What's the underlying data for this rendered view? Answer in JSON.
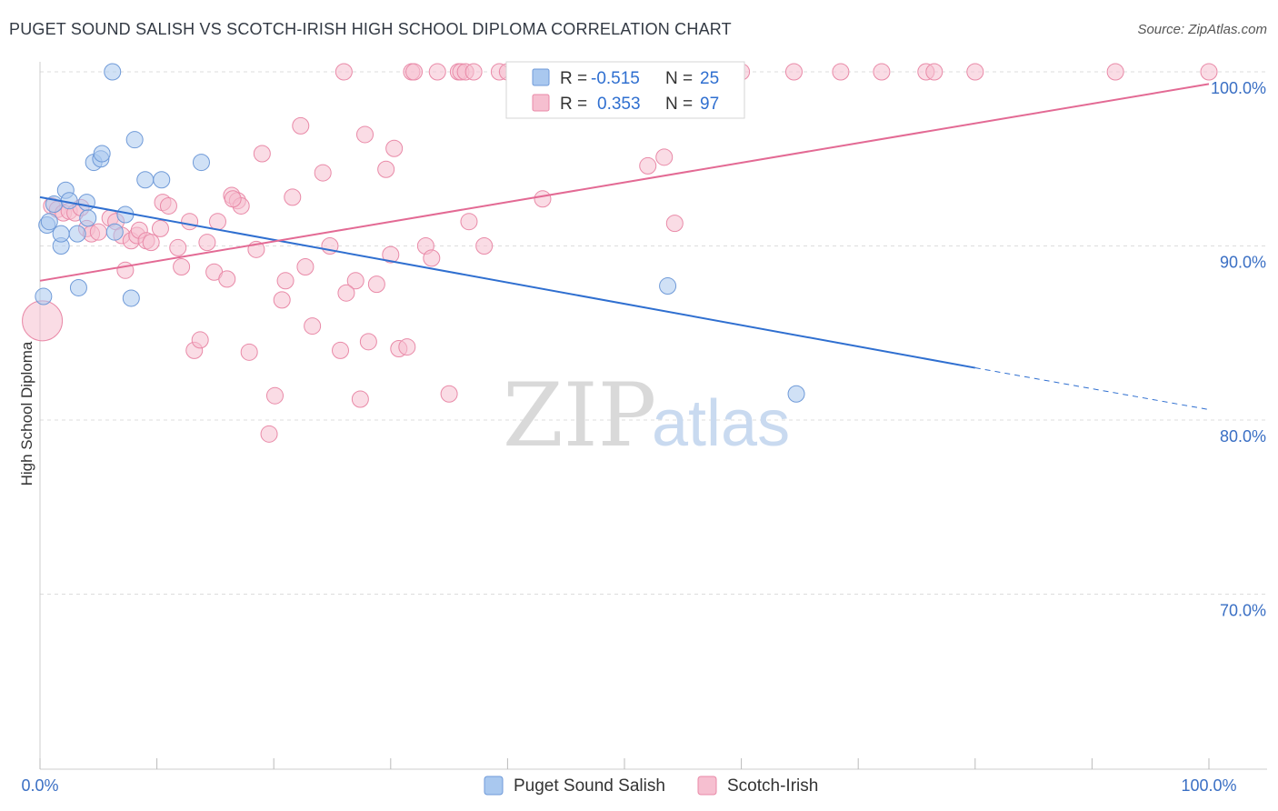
{
  "title": "PUGET SOUND SALISH VS SCOTCH-IRISH HIGH SCHOOL DIPLOMA CORRELATION CHART",
  "source": "Source: ZipAtlas.com",
  "watermark": {
    "zip": "ZIP",
    "atlas": "atlas"
  },
  "colors": {
    "blue_fill": "#a9c8ef",
    "blue_stroke": "#6f9ad8",
    "blue_line": "#2f6fd0",
    "pink_fill": "#f6bfd0",
    "pink_stroke": "#e98aa8",
    "pink_line": "#e36a94",
    "grid": "#dddddd",
    "tick_label": "#3a6fc4"
  },
  "legend": {
    "rows": [
      {
        "r_label": "R =",
        "r_value": "-0.515",
        "n_label": "N =",
        "n_value": "25"
      },
      {
        "r_label": "R =",
        "r_value": "0.353",
        "n_label": "N =",
        "n_value": "97"
      }
    ]
  },
  "chart_data": {
    "type": "scatter",
    "title": "PUGET SOUND SALISH VS SCOTCH-IRISH HIGH SCHOOL DIPLOMA CORRELATION CHART",
    "xlabel": "",
    "ylabel": "High School Diploma",
    "xlim": [
      0,
      100
    ],
    "ylim": [
      60.5,
      100.9
    ],
    "x_tick_labels": [
      "0.0%",
      "100.0%"
    ],
    "y_ticks": [
      70,
      80,
      90,
      100
    ],
    "y_tick_labels": [
      "70.0%",
      "80.0%",
      "90.0%",
      "100.0%"
    ],
    "grid": true,
    "legend_position": "top-center",
    "series": [
      {
        "name": "Puget Sound Salish",
        "R": -0.515,
        "N": 25,
        "trend": {
          "x0": 0,
          "y0": 92.8,
          "x1": 80,
          "y1": 83.0,
          "dash_to_x": 100,
          "dash_to_y": 80.6
        },
        "points": [
          [
            0.3,
            87.1
          ],
          [
            0.6,
            91.2
          ],
          [
            0.8,
            91.4
          ],
          [
            1.2,
            92.4
          ],
          [
            1.8,
            90.0
          ],
          [
            1.8,
            90.7
          ],
          [
            2.2,
            93.2
          ],
          [
            2.5,
            92.6
          ],
          [
            3.2,
            90.7
          ],
          [
            3.3,
            87.6
          ],
          [
            4.0,
            92.5
          ],
          [
            4.1,
            91.6
          ],
          [
            4.6,
            94.8
          ],
          [
            5.2,
            95.0
          ],
          [
            5.3,
            95.3
          ],
          [
            6.2,
            100.0
          ],
          [
            6.4,
            90.8
          ],
          [
            7.3,
            91.8
          ],
          [
            7.8,
            87.0
          ],
          [
            8.1,
            96.1
          ],
          [
            9.0,
            93.8
          ],
          [
            10.4,
            93.8
          ],
          [
            13.8,
            94.8
          ],
          [
            53.7,
            87.7
          ],
          [
            64.7,
            81.5
          ]
        ]
      },
      {
        "name": "Scotch-Irish",
        "R": 0.353,
        "N": 97,
        "trend": {
          "x0": 0,
          "y0": 88.0,
          "x1": 100,
          "y1": 99.3
        },
        "points": [
          [
            0.2,
            85.7
          ],
          [
            1.0,
            92.3
          ],
          [
            1.5,
            92.1
          ],
          [
            2.0,
            91.9
          ],
          [
            2.5,
            92.0
          ],
          [
            3.0,
            91.9
          ],
          [
            3.5,
            92.2
          ],
          [
            4.0,
            91.0
          ],
          [
            4.4,
            90.7
          ],
          [
            5.0,
            90.8
          ],
          [
            6.0,
            91.6
          ],
          [
            6.5,
            91.4
          ],
          [
            7.0,
            90.6
          ],
          [
            7.3,
            88.6
          ],
          [
            7.8,
            90.3
          ],
          [
            8.3,
            90.6
          ],
          [
            8.5,
            90.9
          ],
          [
            9.1,
            90.3
          ],
          [
            9.5,
            90.2
          ],
          [
            10.3,
            91.0
          ],
          [
            10.5,
            92.5
          ],
          [
            11.0,
            92.3
          ],
          [
            11.8,
            89.9
          ],
          [
            12.1,
            88.8
          ],
          [
            12.8,
            91.4
          ],
          [
            13.2,
            84.0
          ],
          [
            13.7,
            84.6
          ],
          [
            14.3,
            90.2
          ],
          [
            14.9,
            88.5
          ],
          [
            15.2,
            91.4
          ],
          [
            16.0,
            88.1
          ],
          [
            16.4,
            92.9
          ],
          [
            16.9,
            92.6
          ],
          [
            17.2,
            92.3
          ],
          [
            17.9,
            83.9
          ],
          [
            18.5,
            89.8
          ],
          [
            19.0,
            95.3
          ],
          [
            19.6,
            79.2
          ],
          [
            20.1,
            81.4
          ],
          [
            20.7,
            86.9
          ],
          [
            21.0,
            88.0
          ],
          [
            21.6,
            92.8
          ],
          [
            22.3,
            96.9
          ],
          [
            22.7,
            88.8
          ],
          [
            23.3,
            85.4
          ],
          [
            24.2,
            94.2
          ],
          [
            24.8,
            90.0
          ],
          [
            25.7,
            84.0
          ],
          [
            26.0,
            100.0
          ],
          [
            27.0,
            88.0
          ],
          [
            27.4,
            81.2
          ],
          [
            27.8,
            96.4
          ],
          [
            28.1,
            84.5
          ],
          [
            28.8,
            87.8
          ],
          [
            29.6,
            94.4
          ],
          [
            30.0,
            89.5
          ],
          [
            30.3,
            95.6
          ],
          [
            30.7,
            84.1
          ],
          [
            31.4,
            84.2
          ],
          [
            31.8,
            100.0
          ],
          [
            32.0,
            100.0
          ],
          [
            33.0,
            90.0
          ],
          [
            33.5,
            89.3
          ],
          [
            34.0,
            100.0
          ],
          [
            35.0,
            81.5
          ],
          [
            35.8,
            100.0
          ],
          [
            36.0,
            100.0
          ],
          [
            36.4,
            100.0
          ],
          [
            37.1,
            100.0
          ],
          [
            38.0,
            90.0
          ],
          [
            39.3,
            100.0
          ],
          [
            40.0,
            100.0
          ],
          [
            41.0,
            100.0
          ],
          [
            43.0,
            92.7
          ],
          [
            44.0,
            100.0
          ],
          [
            45.0,
            100.0
          ],
          [
            46.0,
            100.0
          ],
          [
            48.0,
            100.0
          ],
          [
            50.0,
            100.0
          ],
          [
            52.5,
            100.0
          ],
          [
            53.4,
            95.1
          ],
          [
            56.0,
            100.0
          ],
          [
            58.0,
            100.0
          ],
          [
            60.0,
            100.0
          ],
          [
            64.5,
            100.0
          ],
          [
            68.5,
            100.0
          ],
          [
            72.0,
            100.0
          ],
          [
            75.8,
            100.0
          ],
          [
            76.5,
            100.0
          ],
          [
            80.0,
            100.0
          ],
          [
            92.0,
            100.0
          ],
          [
            100.0,
            100.0
          ],
          [
            16.5,
            92.7
          ],
          [
            36.7,
            91.4
          ],
          [
            52.0,
            94.6
          ],
          [
            54.3,
            91.3
          ],
          [
            26.2,
            87.3
          ]
        ]
      }
    ]
  },
  "bottom_legend": [
    {
      "label": "Puget Sound Salish"
    },
    {
      "label": "Scotch-Irish"
    }
  ]
}
